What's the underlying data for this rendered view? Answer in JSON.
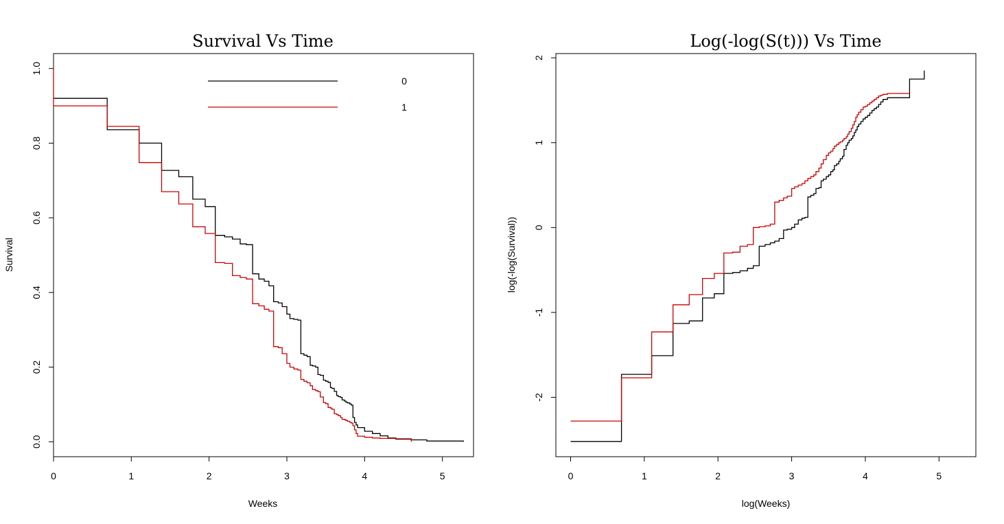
{
  "chart_data": [
    {
      "type": "line",
      "step": true,
      "title": "Survival Vs Time",
      "xlabel": "Weeks",
      "ylabel": "Survival",
      "xlim": [
        0,
        5.4
      ],
      "ylim": [
        -0.04,
        1.04
      ],
      "xticks": [
        0,
        1,
        2,
        3,
        4,
        5
      ],
      "yticks": [
        0.0,
        0.2,
        0.4,
        0.6,
        0.8,
        1.0
      ],
      "ytick_labels": [
        "0.0",
        "0.2",
        "0.4",
        "0.6",
        "0.8",
        "1.0"
      ],
      "grid": false,
      "legend": {
        "placement": "top-center",
        "entries": [
          "0",
          "1"
        ]
      },
      "series": [
        {
          "name": "0",
          "color": "#000000",
          "x": [
            0,
            0.69,
            1.1,
            1.39,
            1.61,
            1.79,
            1.95,
            2.08,
            2.2,
            2.3,
            2.4,
            2.48,
            2.56,
            2.64,
            2.71,
            2.77,
            2.83,
            2.89,
            2.94,
            3.0,
            3.04,
            3.09,
            3.14,
            3.18,
            3.22,
            3.26,
            3.3,
            3.33,
            3.37,
            3.4,
            3.43,
            3.47,
            3.5,
            3.53,
            3.56,
            3.58,
            3.61,
            3.64,
            3.66,
            3.69,
            3.71,
            3.74,
            3.76,
            3.78,
            3.81,
            3.83,
            3.85,
            3.87,
            3.89,
            3.91,
            4.0,
            4.1,
            4.2,
            4.3,
            4.4,
            4.6,
            4.8,
            5.27
          ],
          "y": [
            0.92,
            0.836,
            0.8,
            0.727,
            0.71,
            0.65,
            0.63,
            0.553,
            0.549,
            0.543,
            0.53,
            0.528,
            0.45,
            0.436,
            0.43,
            0.418,
            0.375,
            0.372,
            0.362,
            0.342,
            0.33,
            0.328,
            0.326,
            0.236,
            0.232,
            0.228,
            0.205,
            0.203,
            0.2,
            0.18,
            0.178,
            0.165,
            0.162,
            0.159,
            0.145,
            0.143,
            0.135,
            0.124,
            0.121,
            0.119,
            0.112,
            0.109,
            0.106,
            0.104,
            0.101,
            0.098,
            0.065,
            0.052,
            0.045,
            0.038,
            0.028,
            0.022,
            0.016,
            0.01,
            0.007,
            0.005,
            0.002,
            0.0
          ]
        },
        {
          "name": "1",
          "color": "#cc0000",
          "x": [
            0,
            0.69,
            1.1,
            1.39,
            1.61,
            1.79,
            1.95,
            2.08,
            2.2,
            2.3,
            2.4,
            2.48,
            2.56,
            2.64,
            2.71,
            2.77,
            2.83,
            2.89,
            2.94,
            3.0,
            3.04,
            3.09,
            3.14,
            3.18,
            3.22,
            3.26,
            3.3,
            3.33,
            3.37,
            3.4,
            3.43,
            3.47,
            3.5,
            3.53,
            3.56,
            3.58,
            3.61,
            3.64,
            3.66,
            3.69,
            3.71,
            3.74,
            3.76,
            3.78,
            3.81,
            3.83,
            3.85,
            3.87,
            3.89,
            3.91,
            4.0,
            4.1,
            4.2,
            4.4,
            4.6
          ],
          "y": [
            0.9,
            0.845,
            0.748,
            0.67,
            0.637,
            0.576,
            0.558,
            0.48,
            0.478,
            0.445,
            0.44,
            0.436,
            0.37,
            0.364,
            0.355,
            0.35,
            0.255,
            0.252,
            0.236,
            0.21,
            0.2,
            0.195,
            0.192,
            0.167,
            0.162,
            0.158,
            0.15,
            0.14,
            0.137,
            0.134,
            0.12,
            0.105,
            0.102,
            0.092,
            0.09,
            0.087,
            0.075,
            0.073,
            0.07,
            0.065,
            0.06,
            0.059,
            0.057,
            0.055,
            0.052,
            0.05,
            0.043,
            0.032,
            0.022,
            0.015,
            0.012,
            0.01,
            0.009,
            0.008,
            0.0
          ]
        }
      ]
    },
    {
      "type": "line",
      "step": true,
      "title": "Log(-log(S(t))) Vs Time",
      "xlabel": "log(Weeks)",
      "ylabel": "log(-log(Survival))",
      "xlim": [
        -0.2,
        5.5
      ],
      "ylim": [
        -2.7,
        2.05
      ],
      "xticks": [
        0,
        1,
        2,
        3,
        4,
        5
      ],
      "yticks": [
        -2,
        -1,
        0,
        1,
        2
      ],
      "ytick_labels": [
        "-2",
        "-1",
        "0",
        "1",
        "2"
      ],
      "grid": false,
      "series": [
        {
          "name": "0",
          "color": "#000000",
          "x": [
            0,
            0.69,
            1.1,
            1.39,
            1.61,
            1.79,
            1.95,
            2.08,
            2.2,
            2.3,
            2.4,
            2.48,
            2.56,
            2.64,
            2.71,
            2.77,
            2.83,
            2.89,
            2.94,
            3.0,
            3.04,
            3.09,
            3.14,
            3.18,
            3.22,
            3.26,
            3.3,
            3.33,
            3.37,
            3.4,
            3.43,
            3.47,
            3.5,
            3.53,
            3.56,
            3.58,
            3.61,
            3.64,
            3.66,
            3.69,
            3.71,
            3.74,
            3.76,
            3.78,
            3.81,
            3.83,
            3.85,
            3.87,
            3.89,
            3.91,
            3.94,
            3.97,
            4.0,
            4.03,
            4.06,
            4.09,
            4.12,
            4.15,
            4.18,
            4.21,
            4.24,
            4.3,
            4.6,
            4.8
          ],
          "y": [
            -2.52,
            -1.73,
            -1.51,
            -1.13,
            -1.1,
            -0.83,
            -0.78,
            -0.54,
            -0.53,
            -0.51,
            -0.48,
            -0.45,
            -0.22,
            -0.2,
            -0.18,
            -0.16,
            -0.13,
            -0.03,
            -0.02,
            0.0,
            0.04,
            0.09,
            0.11,
            0.12,
            0.36,
            0.38,
            0.4,
            0.46,
            0.47,
            0.55,
            0.57,
            0.6,
            0.62,
            0.66,
            0.68,
            0.73,
            0.75,
            0.78,
            0.81,
            0.84,
            0.92,
            0.97,
            1.0,
            1.03,
            1.05,
            1.08,
            1.12,
            1.15,
            1.19,
            1.22,
            1.25,
            1.28,
            1.3,
            1.32,
            1.35,
            1.38,
            1.4,
            1.42,
            1.45,
            1.48,
            1.51,
            1.53,
            1.75,
            1.85
          ]
        },
        {
          "name": "1",
          "color": "#cc0000",
          "x": [
            0,
            0.69,
            1.1,
            1.39,
            1.61,
            1.79,
            1.95,
            2.08,
            2.2,
            2.3,
            2.4,
            2.48,
            2.56,
            2.64,
            2.71,
            2.77,
            2.83,
            2.89,
            2.94,
            3.0,
            3.04,
            3.09,
            3.14,
            3.18,
            3.22,
            3.26,
            3.3,
            3.33,
            3.37,
            3.4,
            3.43,
            3.47,
            3.5,
            3.53,
            3.56,
            3.58,
            3.61,
            3.64,
            3.66,
            3.69,
            3.71,
            3.74,
            3.76,
            3.78,
            3.81,
            3.83,
            3.85,
            3.87,
            3.89,
            3.91,
            3.94,
            3.97,
            4.0,
            4.03,
            4.06,
            4.09,
            4.12,
            4.15,
            4.18,
            4.21,
            4.24,
            4.3,
            4.4,
            4.6
          ],
          "y": [
            -2.28,
            -1.77,
            -1.23,
            -0.91,
            -0.79,
            -0.6,
            -0.54,
            -0.3,
            -0.29,
            -0.22,
            -0.2,
            0.0,
            0.01,
            0.02,
            0.04,
            0.3,
            0.32,
            0.35,
            0.37,
            0.46,
            0.48,
            0.5,
            0.52,
            0.55,
            0.58,
            0.6,
            0.62,
            0.66,
            0.7,
            0.75,
            0.8,
            0.85,
            0.88,
            0.9,
            0.93,
            0.96,
            0.98,
            1.0,
            1.01,
            1.03,
            1.05,
            1.07,
            1.1,
            1.13,
            1.17,
            1.21,
            1.25,
            1.3,
            1.33,
            1.36,
            1.39,
            1.42,
            1.43,
            1.45,
            1.47,
            1.49,
            1.51,
            1.53,
            1.55,
            1.56,
            1.57,
            1.58,
            1.58,
            1.58
          ]
        }
      ]
    }
  ]
}
